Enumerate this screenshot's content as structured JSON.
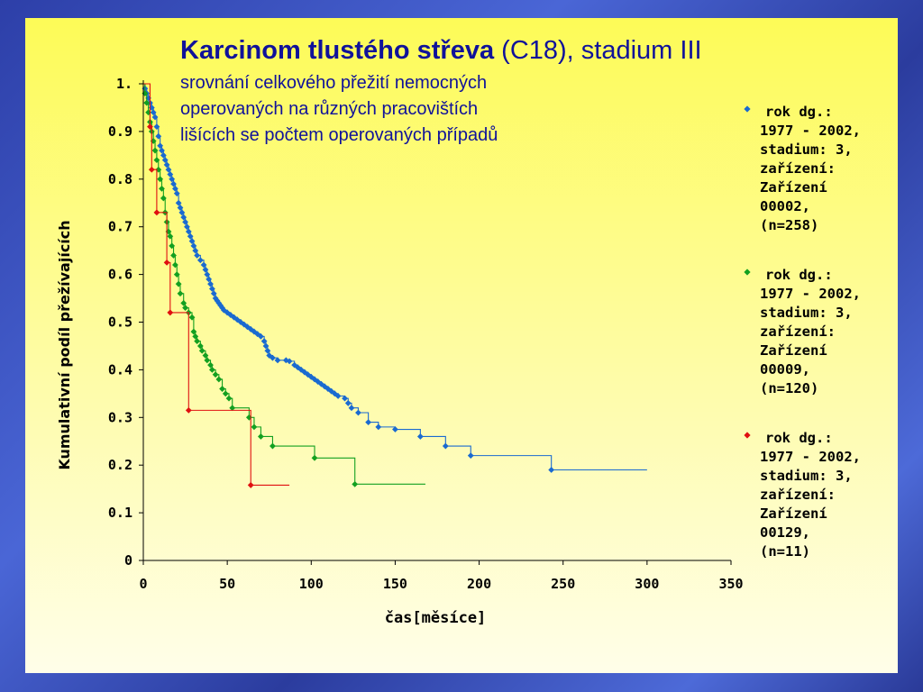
{
  "title": {
    "bold": "Karcinom tlustého střeva",
    "rest": " (C18), stadium III",
    "subtitle": [
      "srovnání celkového přežití nemocných",
      "operovaných na různých pracovištích",
      "lišících se počtem operovaných případů"
    ]
  },
  "colors": {
    "title": "#10129a",
    "series": [
      "#1a6ad0",
      "#13a020",
      "#e01010"
    ]
  },
  "chart_data": {
    "type": "line",
    "xlabel": "čas[měsíce]",
    "ylabel": "Kumulativní podíl přežívajících",
    "xlim": [
      0,
      350
    ],
    "ylim": [
      0,
      1
    ],
    "x_ticks": [
      0,
      50,
      100,
      150,
      200,
      250,
      300,
      350
    ],
    "x_tick_labels": [
      "0",
      "50",
      "100",
      "150",
      "200",
      "250",
      "300",
      "350"
    ],
    "y_ticks": [
      0,
      0.1,
      0.2,
      0.3,
      0.4,
      0.5,
      0.6,
      0.7,
      0.8,
      0.9,
      1
    ],
    "y_tick_labels": [
      "0",
      "0.1",
      "0.2",
      "0.3",
      "0.4",
      "0.5",
      "0.6",
      "0.7",
      "0.8",
      "0.9",
      "1."
    ],
    "grid": false,
    "legend_position": "right",
    "step": true,
    "series": [
      {
        "name": "rok dg.: 1977 - 2002, stadium: 3, zařízení: Zařízení 00002, (n=258)",
        "legend_lines": [
          "rok dg.:",
          "1977 - 2002,",
          "stadium: 3,",
          "zařízení:",
          "Zařízení",
          "00002,",
          "(n=258)"
        ],
        "points": [
          [
            0,
            1.0
          ],
          [
            1,
            0.99
          ],
          [
            2,
            0.98
          ],
          [
            3,
            0.97
          ],
          [
            4,
            0.96
          ],
          [
            5,
            0.95
          ],
          [
            6,
            0.94
          ],
          [
            7,
            0.93
          ],
          [
            8,
            0.91
          ],
          [
            9,
            0.89
          ],
          [
            10,
            0.87
          ],
          [
            11,
            0.86
          ],
          [
            12,
            0.85
          ],
          [
            13,
            0.84
          ],
          [
            14,
            0.83
          ],
          [
            15,
            0.82
          ],
          [
            16,
            0.81
          ],
          [
            17,
            0.8
          ],
          [
            18,
            0.79
          ],
          [
            19,
            0.78
          ],
          [
            20,
            0.77
          ],
          [
            21,
            0.75
          ],
          [
            22,
            0.74
          ],
          [
            23,
            0.73
          ],
          [
            24,
            0.72
          ],
          [
            25,
            0.71
          ],
          [
            26,
            0.7
          ],
          [
            27,
            0.69
          ],
          [
            28,
            0.68
          ],
          [
            29,
            0.67
          ],
          [
            30,
            0.66
          ],
          [
            31,
            0.65
          ],
          [
            32,
            0.64
          ],
          [
            34,
            0.63
          ],
          [
            36,
            0.62
          ],
          [
            37,
            0.61
          ],
          [
            38,
            0.6
          ],
          [
            39,
            0.59
          ],
          [
            40,
            0.58
          ],
          [
            41,
            0.57
          ],
          [
            42,
            0.56
          ],
          [
            43,
            0.55
          ],
          [
            44,
            0.545
          ],
          [
            45,
            0.54
          ],
          [
            46,
            0.535
          ],
          [
            47,
            0.53
          ],
          [
            48,
            0.525
          ],
          [
            50,
            0.52
          ],
          [
            52,
            0.515
          ],
          [
            54,
            0.51
          ],
          [
            56,
            0.505
          ],
          [
            58,
            0.5
          ],
          [
            60,
            0.495
          ],
          [
            62,
            0.49
          ],
          [
            64,
            0.485
          ],
          [
            66,
            0.48
          ],
          [
            68,
            0.475
          ],
          [
            70,
            0.47
          ],
          [
            72,
            0.46
          ],
          [
            73,
            0.45
          ],
          [
            74,
            0.44
          ],
          [
            75,
            0.43
          ],
          [
            77,
            0.425
          ],
          [
            80,
            0.42
          ],
          [
            85,
            0.42
          ],
          [
            87,
            0.418
          ],
          [
            90,
            0.41
          ],
          [
            92,
            0.405
          ],
          [
            94,
            0.4
          ],
          [
            96,
            0.395
          ],
          [
            98,
            0.39
          ],
          [
            100,
            0.385
          ],
          [
            102,
            0.38
          ],
          [
            104,
            0.375
          ],
          [
            106,
            0.37
          ],
          [
            108,
            0.365
          ],
          [
            110,
            0.36
          ],
          [
            112,
            0.355
          ],
          [
            114,
            0.35
          ],
          [
            116,
            0.345
          ],
          [
            120,
            0.34
          ],
          [
            122,
            0.33
          ],
          [
            124,
            0.32
          ],
          [
            128,
            0.31
          ],
          [
            134,
            0.29
          ],
          [
            140,
            0.28
          ],
          [
            150,
            0.275
          ],
          [
            165,
            0.26
          ],
          [
            180,
            0.24
          ],
          [
            195,
            0.22
          ],
          [
            243,
            0.19
          ],
          [
            300,
            0.19
          ]
        ],
        "markers_until": 243
      },
      {
        "name": "rok dg.: 1977 - 2002, stadium: 3, zařízení: Zařízení 00009, (n=120)",
        "legend_lines": [
          "rok dg.:",
          "1977 - 2002,",
          "stadium: 3,",
          "zařízení:",
          "Zařízení",
          "00009,",
          "(n=120)"
        ],
        "points": [
          [
            0,
            1.0
          ],
          [
            1,
            0.98
          ],
          [
            2,
            0.96
          ],
          [
            3,
            0.94
          ],
          [
            4,
            0.92
          ],
          [
            5,
            0.9
          ],
          [
            6,
            0.88
          ],
          [
            7,
            0.86
          ],
          [
            8,
            0.84
          ],
          [
            9,
            0.82
          ],
          [
            10,
            0.8
          ],
          [
            11,
            0.78
          ],
          [
            12,
            0.76
          ],
          [
            13,
            0.73
          ],
          [
            14,
            0.71
          ],
          [
            15,
            0.69
          ],
          [
            16,
            0.68
          ],
          [
            17,
            0.66
          ],
          [
            18,
            0.64
          ],
          [
            19,
            0.62
          ],
          [
            20,
            0.6
          ],
          [
            21,
            0.58
          ],
          [
            22,
            0.56
          ],
          [
            24,
            0.54
          ],
          [
            25,
            0.53
          ],
          [
            27,
            0.52
          ],
          [
            29,
            0.51
          ],
          [
            30,
            0.48
          ],
          [
            31,
            0.47
          ],
          [
            32,
            0.46
          ],
          [
            34,
            0.45
          ],
          [
            35,
            0.44
          ],
          [
            37,
            0.43
          ],
          [
            38,
            0.42
          ],
          [
            40,
            0.41
          ],
          [
            41,
            0.4
          ],
          [
            43,
            0.39
          ],
          [
            45,
            0.38
          ],
          [
            47,
            0.36
          ],
          [
            49,
            0.35
          ],
          [
            51,
            0.34
          ],
          [
            53,
            0.32
          ],
          [
            63,
            0.3
          ],
          [
            66,
            0.28
          ],
          [
            70,
            0.26
          ],
          [
            77,
            0.24
          ],
          [
            102,
            0.215
          ],
          [
            126,
            0.16
          ],
          [
            168,
            0.16
          ]
        ],
        "markers_until": 126
      },
      {
        "name": "rok dg.: 1977 - 2002, stadium: 3, zařízení: Zařízení 00129, (n=11)",
        "legend_lines": [
          "rok dg.:",
          "1977 - 2002,",
          "stadium: 3,",
          "zařízení:",
          "Zařízení",
          "00129,",
          "(n=11)"
        ],
        "points": [
          [
            0,
            1.0
          ],
          [
            4,
            0.91
          ],
          [
            5,
            0.82
          ],
          [
            8,
            0.73
          ],
          [
            14,
            0.625
          ],
          [
            16,
            0.52
          ],
          [
            27,
            0.315
          ],
          [
            64,
            0.158
          ],
          [
            87,
            0.158
          ]
        ],
        "markers_until": 64
      }
    ]
  }
}
